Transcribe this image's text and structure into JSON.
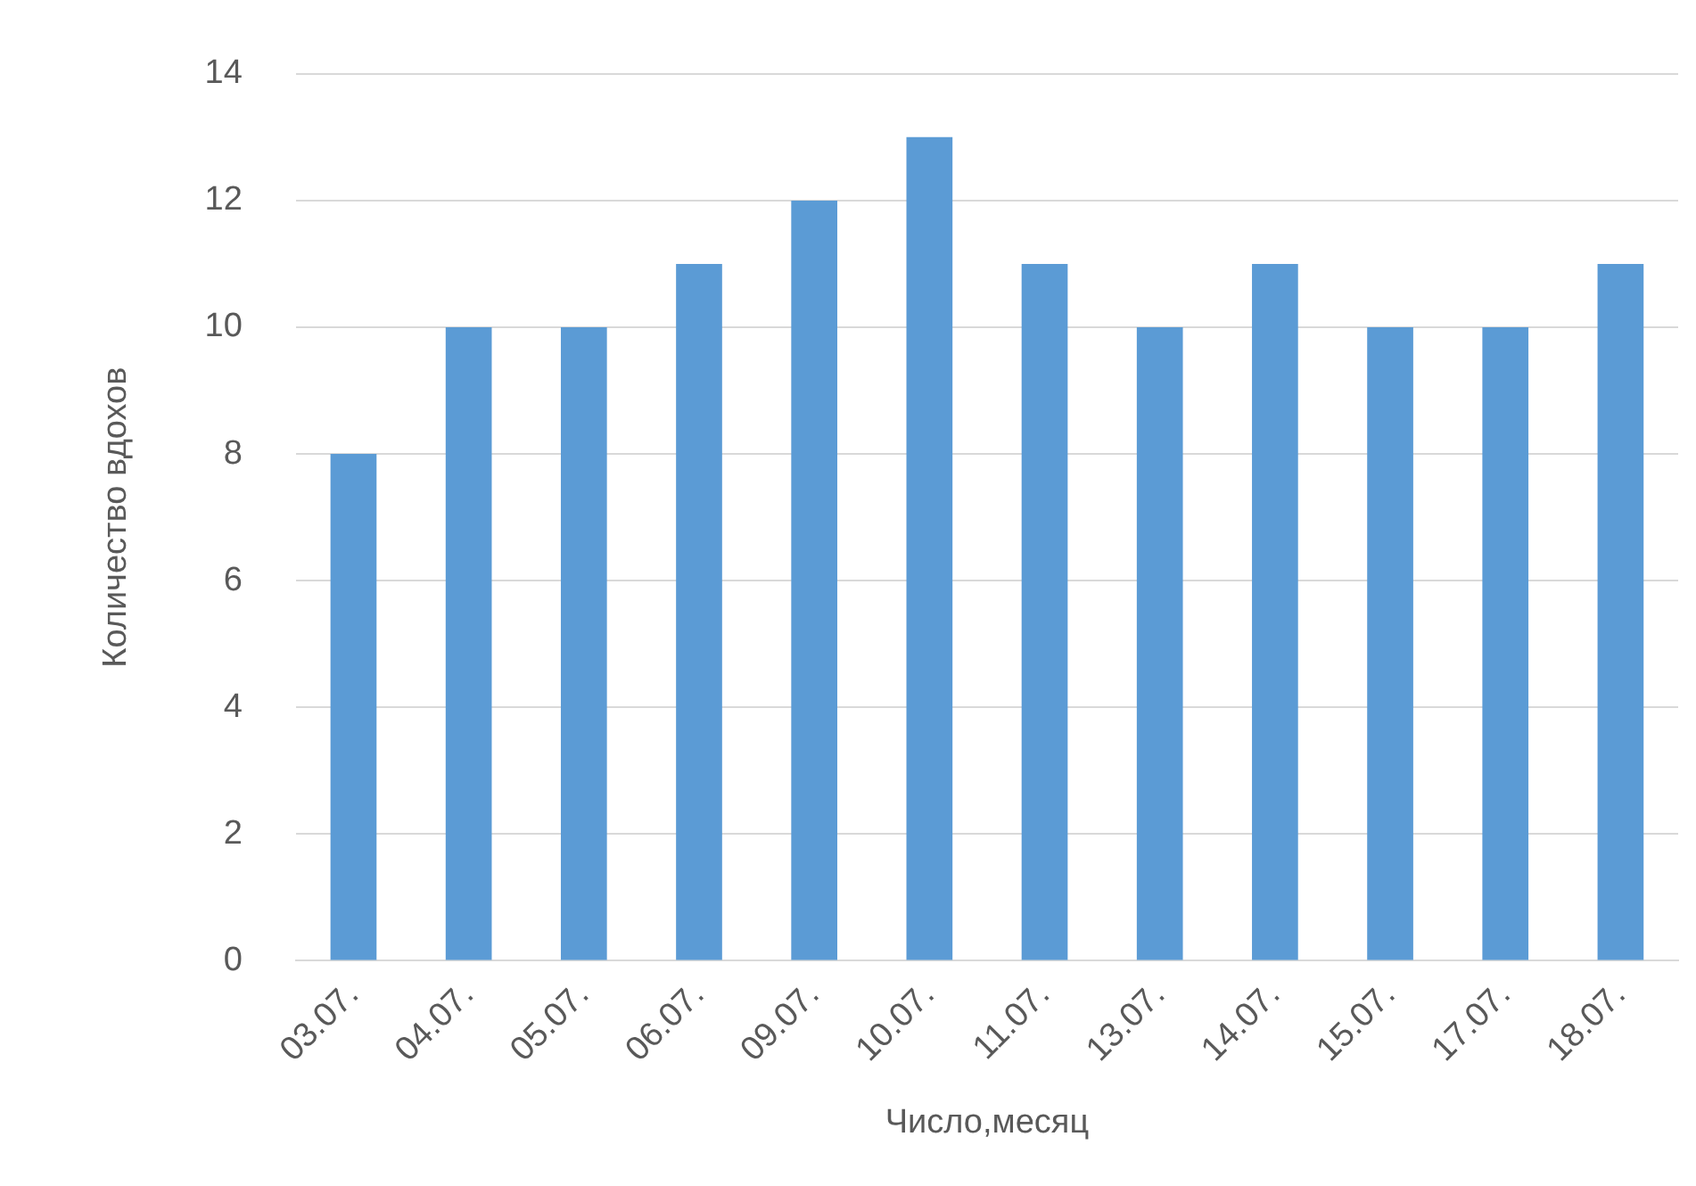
{
  "chart_data": {
    "type": "bar",
    "xlabel": "Число,месяц",
    "ylabel": "Количество вдохов",
    "categories": [
      "03.07.",
      "04.07.",
      "05.07.",
      "06.07.",
      "09.07.",
      "10.07.",
      "11.07.",
      "13.07.",
      "14.07.",
      "15.07.",
      "17.07.",
      "18.07."
    ],
    "values": [
      8,
      10,
      10,
      11,
      12,
      13,
      11,
      10,
      11,
      10,
      10,
      11
    ],
    "color": "#5b9bd5",
    "ylim": [
      0,
      14
    ],
    "yticks": [
      0,
      2,
      4,
      6,
      8,
      10,
      12,
      14
    ],
    "grid": "y",
    "legend": false
  }
}
